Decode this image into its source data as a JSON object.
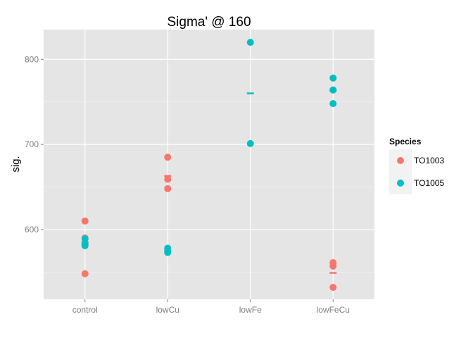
{
  "chart_data": {
    "type": "scatter",
    "title": "Sigma' @ 160",
    "xlabel": "",
    "ylabel": "sig.",
    "categories": [
      "control",
      "lowCu",
      "lowFe",
      "lowFeCu"
    ],
    "ylim": [
      518,
      835
    ],
    "yticks": [
      600,
      700,
      800
    ],
    "grid": true,
    "legend": {
      "title": "Species",
      "position": "right"
    },
    "series": [
      {
        "name": "TO1003",
        "color": "#F8766D",
        "points": [
          {
            "x": "control",
            "y": 610
          },
          {
            "x": "control",
            "y": 590
          },
          {
            "x": "control",
            "y": 582
          },
          {
            "x": "control",
            "y": 548
          },
          {
            "x": "lowCu",
            "y": 685
          },
          {
            "x": "lowCu",
            "y": 659
          },
          {
            "x": "lowCu",
            "y": 648
          },
          {
            "x": "lowFeCu",
            "y": 561
          },
          {
            "x": "lowFeCu",
            "y": 557
          },
          {
            "x": "lowFeCu",
            "y": 532
          }
        ],
        "means": [
          {
            "x": "control",
            "y": 583
          },
          {
            "x": "lowCu",
            "y": 663
          },
          {
            "x": "lowFeCu",
            "y": 549
          }
        ]
      },
      {
        "name": "TO1005",
        "color": "#00BFC4",
        "points": [
          {
            "x": "control",
            "y": 589
          },
          {
            "x": "control",
            "y": 581
          },
          {
            "x": "lowCu",
            "y": 578
          },
          {
            "x": "lowCu",
            "y": 573
          },
          {
            "x": "lowFe",
            "y": 820
          },
          {
            "x": "lowFe",
            "y": 701
          },
          {
            "x": "lowFeCu",
            "y": 778
          },
          {
            "x": "lowFeCu",
            "y": 764
          },
          {
            "x": "lowFeCu",
            "y": 748
          }
        ],
        "means": [
          {
            "x": "control",
            "y": 585
          },
          {
            "x": "lowCu",
            "y": 575
          },
          {
            "x": "lowFe",
            "y": 760
          },
          {
            "x": "lowFeCu",
            "y": 763
          }
        ]
      }
    ]
  }
}
